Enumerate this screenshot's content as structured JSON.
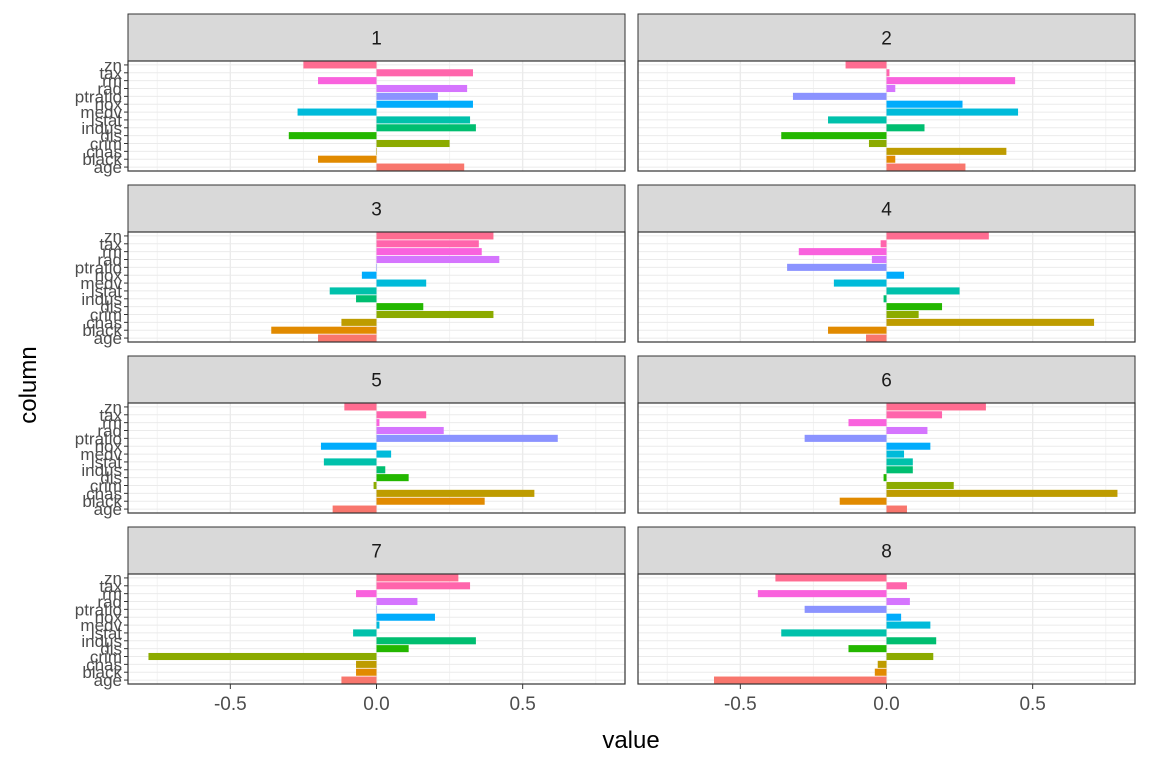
{
  "chart_data": {
    "type": "bar",
    "orientation": "horizontal",
    "facet_layout": "2 columns x 4 rows",
    "xlabel": "value",
    "ylabel": "column",
    "xlim": [
      -0.85,
      0.85
    ],
    "xticks": [
      -0.5,
      0.0,
      0.5
    ],
    "xtick_labels": [
      "-0.5",
      "0.0",
      "0.5"
    ],
    "grid": true,
    "legend": "none",
    "categories": [
      "age",
      "black",
      "chas",
      "crim",
      "dis",
      "indus",
      "lstat",
      "medv",
      "nox",
      "ptratio",
      "rad",
      "rm",
      "tax",
      "zn"
    ],
    "colors": [
      "#F8766D",
      "#E18A00",
      "#BE9C00",
      "#8CAB00",
      "#24B700",
      "#00BE70",
      "#00C1AB",
      "#00BBDA",
      "#00ACFC",
      "#8B93FF",
      "#D575FE",
      "#F962DD",
      "#FF65AC",
      "#FF6C91"
    ],
    "panels": [
      {
        "label": "1",
        "values": [
          0.3,
          -0.2,
          0.0,
          0.25,
          -0.3,
          0.34,
          0.32,
          -0.27,
          0.33,
          0.21,
          0.31,
          -0.2,
          0.33,
          -0.25
        ]
      },
      {
        "label": "2",
        "values": [
          0.27,
          0.03,
          0.41,
          -0.06,
          -0.36,
          0.13,
          -0.2,
          0.45,
          0.26,
          -0.32,
          0.03,
          0.44,
          0.01,
          -0.14
        ]
      },
      {
        "label": "3",
        "values": [
          -0.2,
          -0.36,
          -0.12,
          0.4,
          0.16,
          -0.07,
          -0.16,
          0.17,
          -0.05,
          0.0,
          0.42,
          0.36,
          0.35,
          0.4
        ]
      },
      {
        "label": "4",
        "values": [
          -0.07,
          -0.2,
          0.71,
          0.11,
          0.19,
          -0.01,
          0.25,
          -0.18,
          0.06,
          -0.34,
          -0.05,
          -0.3,
          -0.02,
          0.35
        ]
      },
      {
        "label": "5",
        "values": [
          -0.15,
          0.37,
          0.54,
          -0.01,
          0.11,
          0.03,
          -0.18,
          0.05,
          -0.19,
          0.62,
          0.23,
          0.01,
          0.17,
          -0.11
        ]
      },
      {
        "label": "6",
        "values": [
          0.07,
          -0.16,
          0.79,
          0.23,
          -0.01,
          0.09,
          0.09,
          0.06,
          0.15,
          -0.28,
          0.14,
          -0.13,
          0.19,
          0.34
        ]
      },
      {
        "label": "7",
        "values": [
          -0.12,
          -0.07,
          -0.07,
          -0.78,
          0.11,
          0.34,
          -0.08,
          0.01,
          0.2,
          0.0,
          0.14,
          -0.07,
          0.32,
          0.28
        ]
      },
      {
        "label": "8",
        "values": [
          -0.59,
          -0.04,
          -0.03,
          0.16,
          -0.13,
          0.17,
          -0.36,
          0.15,
          0.05,
          -0.28,
          0.08,
          -0.44,
          0.07,
          -0.38
        ]
      }
    ]
  }
}
